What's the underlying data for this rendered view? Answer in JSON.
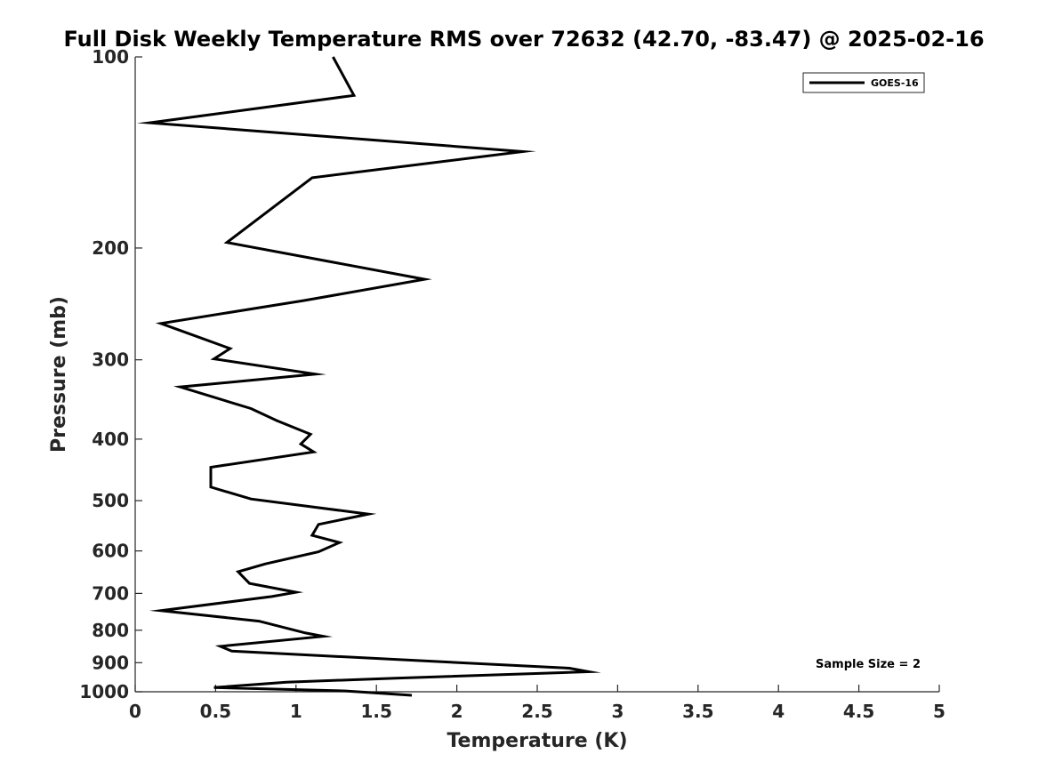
{
  "chart_data": {
    "type": "line",
    "title": "Full Disk Weekly Temperature RMS over 72632 (42.70, -83.47) @ 2025-02-16",
    "xlabel": "Temperature (K)",
    "ylabel": "Pressure (mb)",
    "xlim": [
      0,
      5
    ],
    "ylim": [
      1000,
      100
    ],
    "yscale": "log",
    "y_reversed": true,
    "grid": false,
    "legend_position": "top-right",
    "xticks": [
      0,
      0.5,
      1,
      1.5,
      2,
      2.5,
      3,
      3.5,
      4,
      4.5,
      5
    ],
    "xtick_labels": [
      "0",
      "0.5",
      "1",
      "1.5",
      "2",
      "2.5",
      "3",
      "3.5",
      "4",
      "4.5",
      "5"
    ],
    "yticks": [
      100,
      200,
      300,
      400,
      500,
      600,
      700,
      800,
      900,
      1000
    ],
    "ytick_labels": [
      "100",
      "200",
      "300",
      "400",
      "500",
      "600",
      "700",
      "800",
      "900",
      "1000"
    ],
    "series": [
      {
        "name": "GOES-16",
        "color": "#000000",
        "x": [
          1.23,
          1.36,
          0.09,
          2.41,
          1.1,
          0.57,
          1.8,
          1.05,
          0.16,
          0.59,
          0.49,
          1.12,
          0.28,
          0.72,
          0.88,
          1.09,
          1.03,
          1.11,
          0.47,
          0.47,
          0.72,
          1.45,
          1.14,
          1.1,
          1.27,
          1.14,
          0.81,
          0.64,
          0.71,
          1.0,
          0.85,
          0.16,
          0.77,
          1.06,
          1.17,
          0.53,
          0.6,
          2.7,
          2.82,
          1.62,
          0.94,
          0.49,
          1.31,
          1.72
        ],
        "y": [
          100,
          115,
          127,
          141,
          155,
          196,
          224,
          242,
          263,
          288,
          299,
          316,
          331,
          358,
          374,
          393,
          407,
          419,
          443,
          476,
          497,
          525,
          545,
          567,
          582,
          602,
          629,
          647,
          675,
          697,
          708,
          745,
          774,
          808,
          818,
          848,
          863,
          918,
          930,
          952,
          966,
          985,
          997,
          1013
        ]
      }
    ],
    "annotations": [
      "Sample Size = 2"
    ]
  }
}
